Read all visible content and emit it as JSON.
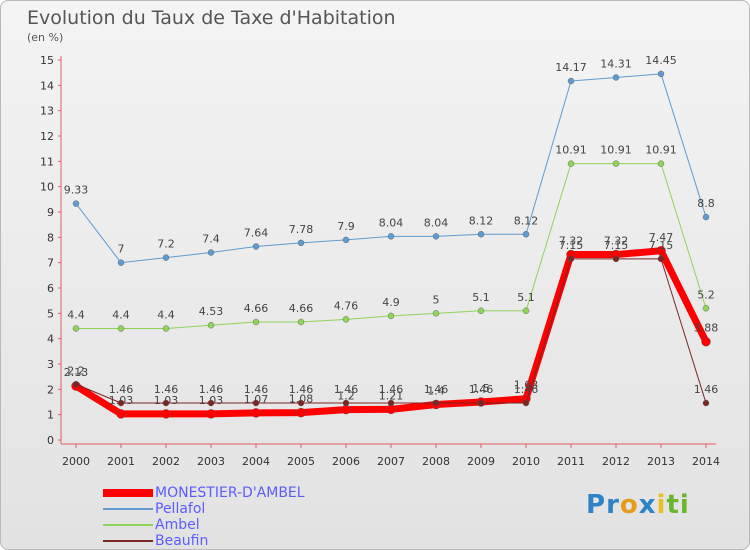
{
  "header": {
    "title": "Evolution du Taux de Taxe d'Habitation",
    "unit": "(en %)"
  },
  "brand": {
    "letters": [
      "P",
      "r",
      "o",
      "x",
      "i",
      "t",
      "i"
    ],
    "colors": [
      "#2d82c8",
      "#2d82c8",
      "#e69c1b",
      "#2d82c8",
      "#e8c01c",
      "#6cb52e",
      "#6cb52e"
    ]
  },
  "chart_data": {
    "type": "line",
    "x": [
      2000,
      2001,
      2002,
      2003,
      2004,
      2005,
      2006,
      2007,
      2008,
      2009,
      2010,
      2011,
      2012,
      2013,
      2014
    ],
    "ylim": [
      0,
      15
    ],
    "yticks": [
      0,
      1,
      2,
      3,
      4,
      5,
      6,
      7,
      8,
      9,
      10,
      11,
      12,
      13,
      14,
      15
    ],
    "grid": false,
    "legend_position": "bottom-left",
    "series": [
      {
        "name": "Pellafol",
        "color": "#5f9bd1",
        "width": 1,
        "values": [
          9.33,
          7,
          7.2,
          7.4,
          7.64,
          7.78,
          7.9,
          8.04,
          8.04,
          8.12,
          8.12,
          14.17,
          14.31,
          14.45,
          8.8
        ],
        "labels": [
          "9.33",
          "7",
          "7.2",
          "7.4",
          "7.64",
          "7.78",
          "7.9",
          "8.04",
          "8.04",
          "8.12",
          "8.12",
          "14.17",
          "14.31",
          "14.45",
          "8.8"
        ]
      },
      {
        "name": "Ambel",
        "color": "#8fd45a",
        "width": 1,
        "values": [
          4.4,
          4.4,
          4.4,
          4.53,
          4.66,
          4.66,
          4.76,
          4.9,
          5,
          5.1,
          5.1,
          10.91,
          10.91,
          10.91,
          5.2
        ],
        "labels": [
          "4.4",
          "4.4",
          "4.4",
          "4.53",
          "4.66",
          "4.66",
          "4.76",
          "4.9",
          "5",
          "5.1",
          "5.1",
          "10.91",
          "10.91",
          "10.91",
          "5.2"
        ]
      },
      {
        "name": "MONESTIER-D'AMBEL",
        "color": "#ff0000",
        "width": 7,
        "values": [
          2.13,
          1.03,
          1.03,
          1.03,
          1.07,
          1.08,
          1.2,
          1.21,
          1.4,
          1.5,
          1.63,
          7.32,
          7.32,
          7.47,
          3.88
        ],
        "labels": [
          "2.13",
          "1.03",
          "1.03",
          "1.03",
          "1.07",
          "1.08",
          "1.2",
          "1.21",
          "1.4",
          "1.5",
          "1.63",
          "7.32",
          "7.32",
          "7.47",
          "3.88"
        ]
      },
      {
        "name": "Beaufin",
        "color": "#7b2525",
        "width": 1,
        "values": [
          2.2,
          1.46,
          1.46,
          1.46,
          1.46,
          1.46,
          1.46,
          1.46,
          1.46,
          1.46,
          1.46,
          7.15,
          7.15,
          7.15,
          1.46
        ],
        "labels": [
          "2.2",
          "1.46",
          "1.46",
          "1.46",
          "1.46",
          "1.46",
          "1.46",
          "1.46",
          "1.46",
          "1.46",
          "1.46",
          "7.15",
          "7.15",
          "7.15",
          "1.46"
        ]
      }
    ]
  },
  "legend": [
    {
      "label": "MONESTIER-D'AMBEL",
      "color": "#ff0000",
      "thick": 8,
      "text_color": "#5c5cff"
    },
    {
      "label": "Pellafol",
      "color": "#5f9bd1",
      "thick": 2,
      "text_color": "#5c5cff"
    },
    {
      "label": "Ambel",
      "color": "#8fd45a",
      "thick": 2,
      "text_color": "#5c5cff"
    },
    {
      "label": "Beaufin",
      "color": "#7b2525",
      "thick": 2,
      "text_color": "#5c5cff"
    }
  ]
}
